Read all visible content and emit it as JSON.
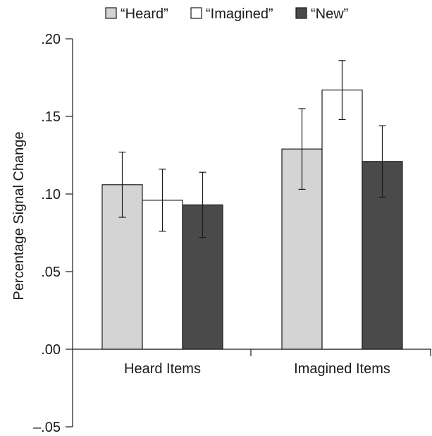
{
  "chart_data": {
    "type": "bar",
    "title": "",
    "xlabel": "",
    "ylabel": "Percentage Signal Change",
    "ylim": [
      -0.05,
      0.2
    ],
    "yticks": [
      {
        "value": -0.05,
        "label": "–.05"
      },
      {
        "value": 0.0,
        "label": ".00"
      },
      {
        "value": 0.05,
        "label": ".05"
      },
      {
        "value": 0.1,
        "label": ".10"
      },
      {
        "value": 0.15,
        "label": ".15"
      },
      {
        "value": 0.2,
        "label": ".20"
      }
    ],
    "categories": [
      "Heard Items",
      "Imagined Items"
    ],
    "series": [
      {
        "name": "“Heard”",
        "color": "#d4d4d4",
        "values": [
          0.106,
          0.129
        ],
        "error": [
          0.021,
          0.026
        ]
      },
      {
        "name": "“Imagined”",
        "color": "#ffffff",
        "values": [
          0.096,
          0.167
        ],
        "error": [
          0.02,
          0.019
        ]
      },
      {
        "name": "“New”",
        "color": "#4a4a4a",
        "values": [
          0.093,
          0.121
        ],
        "error": [
          0.021,
          0.023
        ]
      }
    ],
    "legend_position": "top",
    "grid": false
  }
}
